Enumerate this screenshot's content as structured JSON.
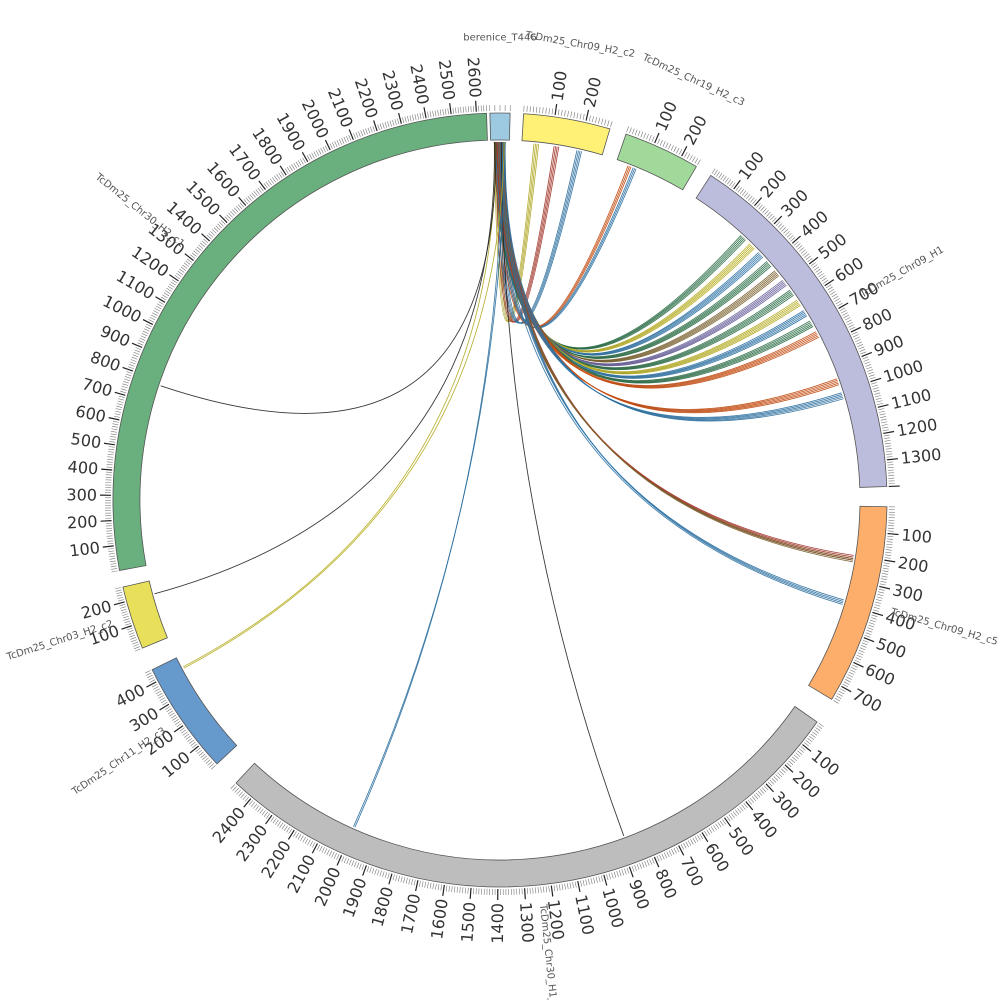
{
  "diagram": {
    "type": "circos",
    "segments": [
      {
        "name": "berenice_T446",
        "length": 40,
        "color": "#9ecae1",
        "ticks": []
      },
      {
        "name": "TcDm25_Chr09_H2_c2",
        "length": 280,
        "color": "#fff176",
        "ticks": [
          "100",
          "200"
        ]
      },
      {
        "name": "TcDm25_Chr19_H2_c3",
        "length": 260,
        "color": "#a1d99b",
        "ticks": [
          "100",
          "200"
        ]
      },
      {
        "name": "TcDm25_Chr09_H1",
        "length": 1400,
        "color": "#bcbddc",
        "ticks": [
          "100",
          "200",
          "300",
          "400",
          "500",
          "600",
          "700",
          "800",
          "900",
          "1000",
          "1100",
          "1200",
          "1300"
        ]
      },
      {
        "name": "TcDm25_Chr09_H2_c5",
        "length": 760,
        "color": "#fdae6b",
        "ticks": [
          "100",
          "200",
          "300",
          "400",
          "500",
          "600",
          "700"
        ]
      },
      {
        "name": "TcDm25_Chr30_H1_c1",
        "length": 2480,
        "color": "#bdbdbd",
        "ticks": [
          "100",
          "200",
          "300",
          "400",
          "500",
          "600",
          "700",
          "800",
          "900",
          "1000",
          "1100",
          "1200",
          "1300",
          "1400",
          "1500",
          "1600",
          "1700",
          "1800",
          "1900",
          "2000",
          "2100",
          "2200",
          "2300",
          "2400"
        ]
      },
      {
        "name": "TcDm25_Chr11_H2_c3",
        "length": 450,
        "color": "#6699cc",
        "ticks": [
          "100",
          "200",
          "300",
          "400"
        ]
      },
      {
        "name": "TcDm25_Chr03_H2_c2",
        "length": 260,
        "color": "#e8e05a",
        "ticks": [
          "100",
          "200"
        ]
      },
      {
        "name": "TcDm25_Chr30_H2_c1",
        "length": 2640,
        "color": "#6aaf7e",
        "ticks": [
          "100",
          "200",
          "300",
          "400",
          "500",
          "600",
          "700",
          "800",
          "900",
          "1000",
          "1100",
          "1200",
          "1300",
          "1400",
          "1500",
          "1600",
          "1700",
          "1800",
          "1900",
          "2000",
          "2100",
          "2200",
          "2300",
          "2400",
          "2500",
          "2600"
        ]
      }
    ],
    "links": [
      {
        "from": "berenice_T446",
        "to": "TcDm25_Chr09_H2_c2",
        "to_pos": 50,
        "color": "#d4c928",
        "count": 4
      },
      {
        "from": "berenice_T446",
        "to": "TcDm25_Chr09_H2_c2",
        "to_pos": 120,
        "color": "#c0392b",
        "count": 4
      },
      {
        "from": "berenice_T446",
        "to": "TcDm25_Chr09_H2_c2",
        "to_pos": 200,
        "color": "#3182bd",
        "count": 4
      },
      {
        "from": "berenice_T446",
        "to": "TcDm25_Chr19_H2_c3",
        "to_pos": 50,
        "color": "#e6550d",
        "count": 3
      },
      {
        "from": "berenice_T446",
        "to": "TcDm25_Chr19_H2_c3",
        "to_pos": 70,
        "color": "#3182bd",
        "count": 3
      },
      {
        "from": "berenice_T446",
        "to": "TcDm25_Chr09_H1",
        "to_pos": 250,
        "color": "#2e7d4f",
        "count": 5
      },
      {
        "from": "berenice_T446",
        "to": "TcDm25_Chr09_H1",
        "to_pos": 300,
        "color": "#d4c928",
        "count": 5
      },
      {
        "from": "berenice_T446",
        "to": "TcDm25_Chr09_H1",
        "to_pos": 350,
        "color": "#3182bd",
        "count": 5
      },
      {
        "from": "berenice_T446",
        "to": "TcDm25_Chr09_H1",
        "to_pos": 400,
        "color": "#2e7d4f",
        "count": 5
      },
      {
        "from": "berenice_T446",
        "to": "TcDm25_Chr09_H1",
        "to_pos": 450,
        "color": "#8c6d31",
        "count": 5
      },
      {
        "from": "berenice_T446",
        "to": "TcDm25_Chr09_H1",
        "to_pos": 500,
        "color": "#756bb1",
        "count": 5
      },
      {
        "from": "berenice_T446",
        "to": "TcDm25_Chr09_H1",
        "to_pos": 550,
        "color": "#2e7d4f",
        "count": 5
      },
      {
        "from": "berenice_T446",
        "to": "TcDm25_Chr09_H1",
        "to_pos": 600,
        "color": "#d4c928",
        "count": 5
      },
      {
        "from": "berenice_T446",
        "to": "TcDm25_Chr09_H1",
        "to_pos": 650,
        "color": "#3182bd",
        "count": 5
      },
      {
        "from": "berenice_T446",
        "to": "TcDm25_Chr09_H1",
        "to_pos": 700,
        "color": "#2e7d4f",
        "count": 5
      },
      {
        "from": "berenice_T446",
        "to": "TcDm25_Chr09_H1",
        "to_pos": 750,
        "color": "#e6550d",
        "count": 5
      },
      {
        "from": "berenice_T446",
        "to": "TcDm25_Chr09_H1",
        "to_pos": 960,
        "color": "#e6550d",
        "count": 5
      },
      {
        "from": "berenice_T446",
        "to": "TcDm25_Chr09_H1",
        "to_pos": 1020,
        "color": "#3182bd",
        "count": 5
      },
      {
        "from": "berenice_T446",
        "to": "TcDm25_Chr09_H2_c5",
        "to_pos": 210,
        "color": "#c0392b",
        "count": 4
      },
      {
        "from": "berenice_T446",
        "to": "TcDm25_Chr09_H2_c5",
        "to_pos": 220,
        "color": "#8c6d31",
        "count": 3
      },
      {
        "from": "berenice_T446",
        "to": "TcDm25_Chr09_H2_c5",
        "to_pos": 395,
        "color": "#3182bd",
        "count": 4
      },
      {
        "from": "berenice_T446",
        "to": "TcDm25_Chr30_H1_c1",
        "to_pos": 880,
        "color": "#222222",
        "count": 1
      },
      {
        "from": "berenice_T446",
        "to": "TcDm25_Chr30_H1_c1",
        "to_pos": 2000,
        "color": "#3182bd",
        "count": 2
      },
      {
        "from": "berenice_T446",
        "to": "TcDm25_Chr11_H2_c3",
        "to_pos": 400,
        "color": "#d4c928",
        "count": 2
      },
      {
        "from": "berenice_T446",
        "to": "TcDm25_Chr03_H2_c2",
        "to_pos": 200,
        "color": "#222222",
        "count": 1
      },
      {
        "from": "berenice_T446",
        "to": "TcDm25_Chr30_H2_c1",
        "to_pos": 780,
        "color": "#222222",
        "count": 1
      }
    ]
  }
}
